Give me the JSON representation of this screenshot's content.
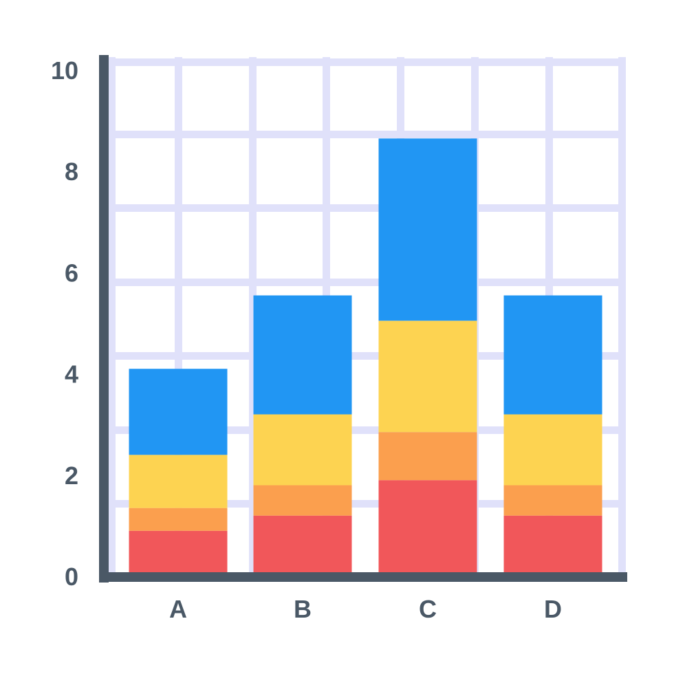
{
  "chart_data": {
    "type": "bar",
    "stacked": true,
    "categories": [
      "A",
      "B",
      "C",
      "D"
    ],
    "series": [
      {
        "values": [
          0.9,
          1.2,
          1.9,
          1.2
        ],
        "color": "#f1575a"
      },
      {
        "values": [
          0.45,
          0.6,
          0.95,
          0.6
        ],
        "color": "#fb9f4e"
      },
      {
        "values": [
          1.05,
          1.4,
          2.2,
          1.4
        ],
        "color": "#fdd351"
      },
      {
        "values": [
          1.7,
          2.35,
          3.6,
          2.35
        ],
        "color": "#2196f3"
      }
    ],
    "y_ticks": [
      "0",
      "2",
      "4",
      "6",
      "8",
      "10"
    ],
    "ylim": [
      0,
      10
    ],
    "grid": true,
    "title": "",
    "xlabel": "",
    "ylabel": "",
    "colors": {
      "axis": "#4a5866",
      "grid": "#e0e1fa",
      "tick_text": "#4a5866"
    }
  }
}
